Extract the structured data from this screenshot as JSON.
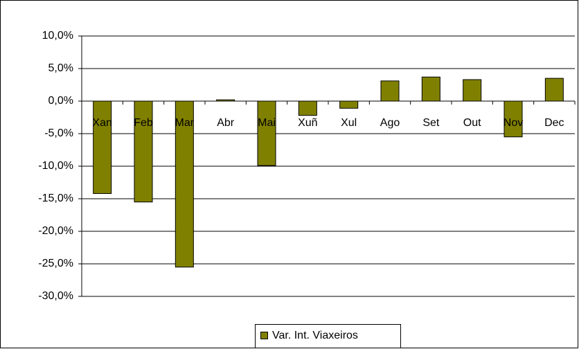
{
  "chart_data": {
    "type": "bar",
    "categories": [
      "Xan",
      "Feb",
      "Mar",
      "Abr",
      "Mai",
      "Xuñ",
      "Xul",
      "Ago",
      "Set",
      "Out",
      "Nov",
      "Dec"
    ],
    "series": [
      {
        "name": "Var. Int. Viaxeiros",
        "color": "#808000",
        "values": [
          -14.2,
          -15.5,
          -25.5,
          0.2,
          -9.9,
          -2.2,
          -1.1,
          3.1,
          3.7,
          3.3,
          -5.5,
          3.5
        ]
      }
    ],
    "ylim": [
      -30,
      10
    ],
    "yticks": [
      {
        "value": 10,
        "label": "10,0%"
      },
      {
        "value": 5,
        "label": "5,0%"
      },
      {
        "value": 0,
        "label": "0,0%"
      },
      {
        "value": -5,
        "label": "-5,0%"
      },
      {
        "value": -10,
        "label": "-10,0%"
      },
      {
        "value": -15,
        "label": "-15,0%"
      },
      {
        "value": -20,
        "label": "-20,0%"
      },
      {
        "value": -25,
        "label": "-25,0%"
      },
      {
        "value": -30,
        "label": "-30,0%"
      }
    ],
    "grid": true,
    "legend": "bottom"
  }
}
